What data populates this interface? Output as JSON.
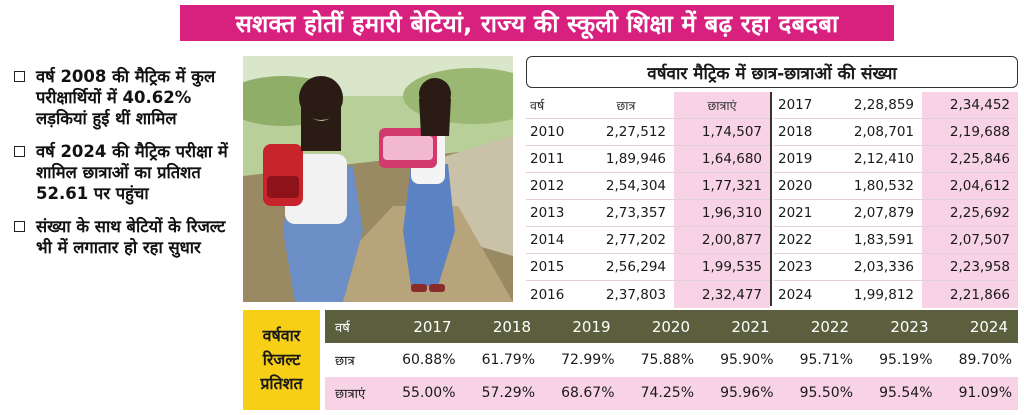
{
  "headline": "सशक्त होतीं हमारी बेटियां, राज्य की स्कूली शिक्षा में बढ़ रहा दबदबा",
  "bullets": [
    "वर्ष 2008 की मैट्रिक में कुल परीक्षार्थियों में 40.62% लड़कियां हुई थीं शामिल",
    "वर्ष 2024 की मैट्रिक परीक्षा में शामिल छात्राओं का प्रतिशत 52.61 पर पहुंचा",
    "संख्या के साथ बेटियों के रिजल्ट भी में लगातार हो रहा सुधार"
  ],
  "enrolment_table": {
    "title": "वर्षवार मैट्रिक में छात्र-छात्राओं की संख्या",
    "headers": {
      "year": "वर्ष",
      "boys": "छात्र",
      "girls": "छात्राएं"
    },
    "left": [
      {
        "year": "2010",
        "boys": "2,27,512",
        "girls": "1,74,507"
      },
      {
        "year": "2011",
        "boys": "1,89,946",
        "girls": "1,64,680"
      },
      {
        "year": "2012",
        "boys": "2,54,304",
        "girls": "1,77,321"
      },
      {
        "year": "2013",
        "boys": "2,73,357",
        "girls": "1,96,310"
      },
      {
        "year": "2014",
        "boys": "2,77,202",
        "girls": "2,00,877"
      },
      {
        "year": "2015",
        "boys": "2,56,294",
        "girls": "1,99,535"
      },
      {
        "year": "2016",
        "boys": "2,37,803",
        "girls": "2,32,477"
      }
    ],
    "right": [
      {
        "year": "2017",
        "boys": "2,28,859",
        "girls": "2,34,452"
      },
      {
        "year": "2018",
        "boys": "2,08,701",
        "girls": "2,19,688"
      },
      {
        "year": "2019",
        "boys": "2,12,410",
        "girls": "2,25,846"
      },
      {
        "year": "2020",
        "boys": "1,80,532",
        "girls": "2,04,612"
      },
      {
        "year": "2021",
        "boys": "2,07,879",
        "girls": "2,25,692"
      },
      {
        "year": "2022",
        "boys": "1,83,591",
        "girls": "2,07,507"
      },
      {
        "year": "2023",
        "boys": "2,03,336",
        "girls": "2,23,958"
      },
      {
        "year": "2024",
        "boys": "1,99,812",
        "girls": "2,21,866"
      }
    ]
  },
  "result_table": {
    "label_lines": [
      "वर्षवार",
      "रिजल्ट",
      "प्रतिशत"
    ],
    "year_header": "वर्ष",
    "years": [
      "2017",
      "2018",
      "2019",
      "2020",
      "2021",
      "2022",
      "2023",
      "2024"
    ],
    "boys_label": "छात्र",
    "boys": [
      "60.88%",
      "61.79%",
      "72.99%",
      "75.88%",
      "95.90%",
      "95.71%",
      "95.19%",
      "89.70%"
    ],
    "girls_label": "छात्राएं",
    "girls": [
      "55.00%",
      "57.29%",
      "68.67%",
      "74.25%",
      "95.96%",
      "95.50%",
      "95.54%",
      "91.09%"
    ]
  },
  "colors": {
    "headline_bg": "#d8217f",
    "girls_highlight": "#f8d3e6",
    "label_bg": "#f6cf16",
    "header_bg": "#5c5f3e"
  }
}
